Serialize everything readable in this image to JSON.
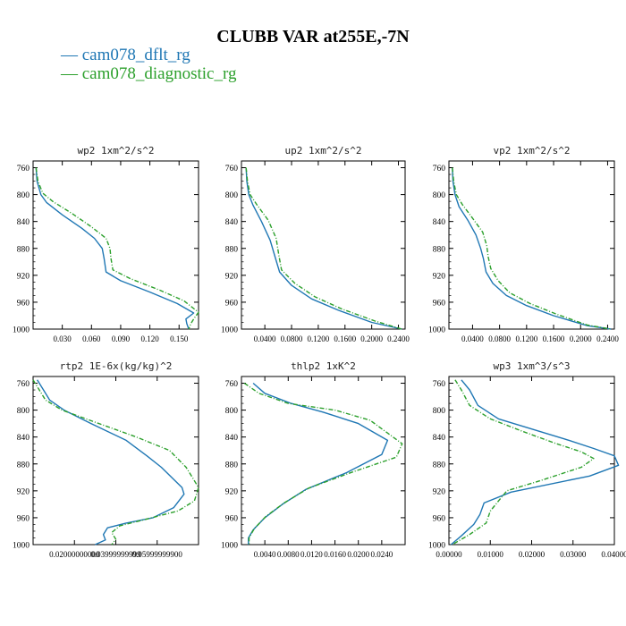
{
  "title": "CLUBB VAR at255E,-7N",
  "legend": [
    {
      "label": "— cam078_dflt_rg",
      "color": "#1f77b4"
    },
    {
      "label": "— cam078_diagnostic_rg",
      "color": "#2ca02c"
    }
  ],
  "chart_data": [
    {
      "type": "line",
      "title": "wp2   1xm^2/s^2",
      "xlim": [
        0.0,
        0.17
      ],
      "ylim": [
        1000,
        750
      ],
      "xticks": [
        "0.030",
        "0.060",
        "0.090",
        "0.120",
        "0.150"
      ],
      "xtick_values": [
        0.03,
        0.06,
        0.09,
        0.12,
        0.15
      ],
      "yticks": [
        760,
        800,
        840,
        880,
        920,
        960,
        1000
      ],
      "series": [
        {
          "name": "cam078_dflt_rg",
          "color": "#1f77b4",
          "dash": "",
          "x": [
            0.003,
            0.004,
            0.008,
            0.014,
            0.03,
            0.05,
            0.063,
            0.071,
            0.073,
            0.075,
            0.09,
            0.12,
            0.148,
            0.165,
            0.157,
            0.158,
            0.16
          ],
          "y": [
            760,
            780,
            800,
            812,
            830,
            850,
            865,
            880,
            895,
            915,
            928,
            945,
            962,
            976,
            985,
            992,
            1000
          ]
        },
        {
          "name": "cam078_diagnostic_rg",
          "color": "#2ca02c",
          "dash": "5,2,1,2",
          "x": [
            0.003,
            0.005,
            0.01,
            0.02,
            0.04,
            0.06,
            0.075,
            0.079,
            0.08,
            0.082,
            0.1,
            0.13,
            0.155,
            0.17,
            0.165,
            0.162,
            0.16
          ],
          "y": [
            760,
            780,
            798,
            810,
            828,
            848,
            865,
            880,
            895,
            912,
            925,
            942,
            958,
            975,
            985,
            992,
            1000
          ]
        }
      ]
    },
    {
      "type": "line",
      "title": "up2   1xm^2/s^2",
      "xlim": [
        0.005,
        0.25
      ],
      "ylim": [
        1000,
        750
      ],
      "xticks": [
        "0.0400",
        "0.0800",
        "0.1200",
        "0.1600",
        "0.2000",
        "0.2400"
      ],
      "xtick_values": [
        0.04,
        0.08,
        0.12,
        0.16,
        0.2,
        0.24
      ],
      "yticks": [
        760,
        800,
        840,
        880,
        920,
        960,
        1000
      ],
      "series": [
        {
          "name": "cam078_dflt_rg",
          "color": "#1f77b4",
          "dash": "",
          "x": [
            0.012,
            0.013,
            0.016,
            0.022,
            0.035,
            0.048,
            0.056,
            0.062,
            0.08,
            0.11,
            0.15,
            0.2,
            0.245
          ],
          "y": [
            760,
            780,
            800,
            815,
            840,
            868,
            895,
            915,
            935,
            955,
            972,
            990,
            1000
          ]
        },
        {
          "name": "cam078_diagnostic_rg",
          "color": "#2ca02c",
          "dash": "5,2,1,2",
          "x": [
            0.012,
            0.014,
            0.018,
            0.028,
            0.045,
            0.057,
            0.061,
            0.065,
            0.085,
            0.115,
            0.155,
            0.205,
            0.245
          ],
          "y": [
            760,
            780,
            800,
            815,
            838,
            865,
            890,
            912,
            932,
            952,
            970,
            988,
            1000
          ]
        }
      ]
    },
    {
      "type": "line",
      "title": "vp2   1xm^2/s^2",
      "xlim": [
        0.005,
        0.25
      ],
      "ylim": [
        1000,
        750
      ],
      "xticks": [
        "0.0400",
        "0.0800",
        "0.1200",
        "0.1600",
        "0.2000",
        "0.2400"
      ],
      "xtick_values": [
        0.04,
        0.08,
        0.12,
        0.16,
        0.2,
        0.24
      ],
      "yticks": [
        760,
        800,
        840,
        880,
        920,
        960,
        1000
      ],
      "series": [
        {
          "name": "cam078_dflt_rg",
          "color": "#1f77b4",
          "dash": "",
          "x": [
            0.01,
            0.011,
            0.014,
            0.02,
            0.033,
            0.045,
            0.052,
            0.056,
            0.06,
            0.07,
            0.09,
            0.12,
            0.16,
            0.21,
            0.245
          ],
          "y": [
            760,
            780,
            800,
            818,
            838,
            860,
            880,
            895,
            915,
            932,
            950,
            965,
            980,
            995,
            1000
          ]
        },
        {
          "name": "cam078_diagnostic_rg",
          "color": "#2ca02c",
          "dash": "5,2,1,2",
          "x": [
            0.01,
            0.012,
            0.016,
            0.025,
            0.04,
            0.055,
            0.061,
            0.063,
            0.067,
            0.078,
            0.095,
            0.125,
            0.165,
            0.21,
            0.245
          ],
          "y": [
            760,
            780,
            800,
            815,
            835,
            856,
            876,
            892,
            910,
            928,
            946,
            962,
            978,
            994,
            1000
          ]
        }
      ]
    },
    {
      "type": "line",
      "title": "rtp2   1E-6x(kg/kg)^2",
      "xlim": [
        0.0,
        0.08
      ],
      "ylim": [
        1000,
        750
      ],
      "xticks": [
        "0.02000000000",
        "0.03999999999",
        "0.05999999900"
      ],
      "xtick_values": [
        0.02,
        0.04,
        0.06
      ],
      "yticks": [
        760,
        800,
        840,
        880,
        920,
        960,
        1000
      ],
      "series": [
        {
          "name": "cam078_dflt_rg",
          "color": "#1f77b4",
          "dash": "",
          "x": [
            0.002,
            0.005,
            0.008,
            0.015,
            0.028,
            0.045,
            0.055,
            0.062,
            0.068,
            0.072,
            0.073,
            0.068,
            0.058,
            0.045,
            0.036,
            0.034,
            0.035,
            0.03
          ],
          "y": [
            755,
            770,
            785,
            800,
            820,
            845,
            868,
            885,
            903,
            915,
            925,
            945,
            960,
            968,
            975,
            985,
            993,
            1000
          ]
        },
        {
          "name": "cam078_diagnostic_rg",
          "color": "#2ca02c",
          "dash": "5,2,1,2",
          "x": [
            0.0,
            0.003,
            0.006,
            0.014,
            0.03,
            0.05,
            0.066,
            0.074,
            0.08,
            0.078,
            0.07,
            0.055,
            0.042,
            0.038,
            0.04,
            0.038
          ],
          "y": [
            755,
            770,
            785,
            800,
            818,
            840,
            860,
            885,
            915,
            935,
            950,
            962,
            972,
            982,
            992,
            1000
          ]
        }
      ]
    },
    {
      "type": "line",
      "title": "thlp2   1xK^2",
      "xlim": [
        0.0,
        0.028
      ],
      "ylim": [
        1000,
        750
      ],
      "xticks": [
        "0.0040",
        "0.0080",
        "0.0120",
        "0.0160",
        "0.0200",
        "0.0240"
      ],
      "xtick_values": [
        0.004,
        0.008,
        0.012,
        0.016,
        0.02,
        0.024
      ],
      "yticks": [
        760,
        800,
        840,
        880,
        920,
        960,
        1000
      ],
      "series": [
        {
          "name": "cam078_dflt_rg",
          "color": "#1f77b4",
          "dash": "",
          "x": [
            0.002,
            0.004,
            0.0085,
            0.014,
            0.02,
            0.025,
            0.024,
            0.018,
            0.011,
            0.007,
            0.004,
            0.002,
            0.0012,
            0.0012
          ],
          "y": [
            760,
            775,
            790,
            803,
            820,
            845,
            866,
            893,
            918,
            940,
            960,
            978,
            990,
            1000
          ]
        },
        {
          "name": "cam078_diagnostic_rg",
          "color": "#2ca02c",
          "dash": "5,2,1,2",
          "x": [
            0.0005,
            0.003,
            0.008,
            0.016,
            0.022,
            0.0275,
            0.0265,
            0.019,
            0.0115,
            0.0073,
            0.0042,
            0.0022,
            0.0013,
            0.0013
          ],
          "y": [
            760,
            775,
            790,
            800,
            815,
            850,
            870,
            892,
            916,
            938,
            958,
            976,
            990,
            1000
          ]
        }
      ]
    },
    {
      "type": "line",
      "title": "wp3   1xm^3/s^3",
      "xlim": [
        0.0,
        0.04
      ],
      "ylim": [
        1000,
        750
      ],
      "xticks": [
        "0.00000",
        "0.01000",
        "0.02000",
        "0.03000",
        "0.04000"
      ],
      "xtick_values": [
        0.0,
        0.01,
        0.02,
        0.03,
        0.04
      ],
      "yticks": [
        760,
        800,
        840,
        880,
        920,
        960,
        1000
      ],
      "series": [
        {
          "name": "cam078_dflt_rg",
          "color": "#1f77b4",
          "dash": "",
          "x": [
            0.003,
            0.005,
            0.007,
            0.012,
            0.02,
            0.028,
            0.035,
            0.04,
            0.041,
            0.034,
            0.015,
            0.0085,
            0.0075,
            0.006,
            0.003,
            0.0005
          ],
          "y": [
            755,
            770,
            793,
            813,
            828,
            843,
            857,
            868,
            882,
            898,
            922,
            938,
            955,
            970,
            987,
            1000
          ]
        },
        {
          "name": "cam078_diagnostic_rg",
          "color": "#2ca02c",
          "dash": "5,2,1,2",
          "x": [
            0.0015,
            0.003,
            0.005,
            0.01,
            0.018,
            0.026,
            0.032,
            0.035,
            0.032,
            0.022,
            0.014,
            0.012,
            0.01,
            0.009,
            0.005,
            0.0008
          ],
          "y": [
            755,
            770,
            793,
            813,
            832,
            850,
            862,
            872,
            885,
            905,
            920,
            935,
            950,
            968,
            985,
            1000
          ]
        }
      ]
    }
  ]
}
